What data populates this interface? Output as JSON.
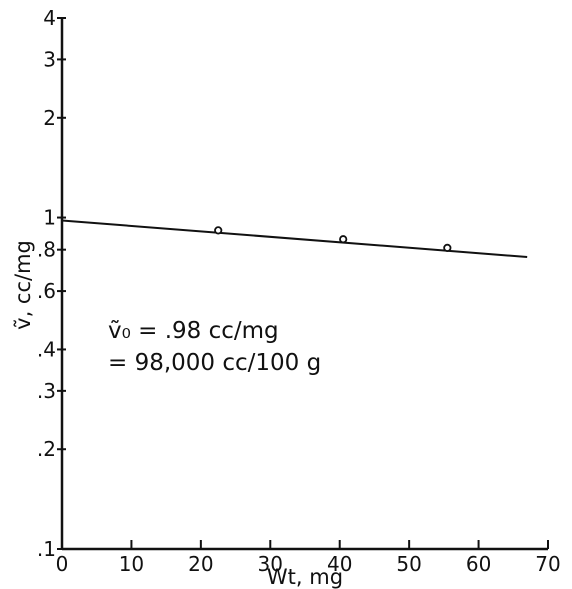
{
  "chart_data": {
    "type": "line",
    "title": "",
    "xlabel": "Wt, mg",
    "ylabel": "ṽ, cc/mg",
    "xlim": [
      0,
      70
    ],
    "ylim": [
      0.1,
      4
    ],
    "yscale": "log",
    "grid": false,
    "x_ticks": [
      0,
      10,
      20,
      30,
      40,
      50,
      60,
      70
    ],
    "x_tick_labels": [
      "0",
      "10",
      "20",
      "30",
      "40",
      "50",
      "60",
      "70"
    ],
    "y_ticks": [
      0.1,
      0.2,
      0.3,
      0.4,
      0.6,
      0.8,
      1,
      2,
      3,
      4
    ],
    "y_tick_labels": [
      ".1",
      ".2",
      ".3",
      ".4",
      ".6",
      ".8",
      "1",
      "2",
      "3",
      "4"
    ],
    "series": [
      {
        "points": [
          {
            "x": 22.5,
            "y": 0.915
          },
          {
            "x": 40.5,
            "y": 0.86
          },
          {
            "x": 55.5,
            "y": 0.81
          }
        ],
        "fit_line": {
          "x": [
            0,
            67
          ],
          "y": [
            0.98,
            0.76
          ]
        }
      }
    ],
    "annotations": [
      {
        "text": "ṽ₀ = .98  cc/mg"
      },
      {
        "text": "= 98,000  cc/100  g"
      }
    ]
  }
}
